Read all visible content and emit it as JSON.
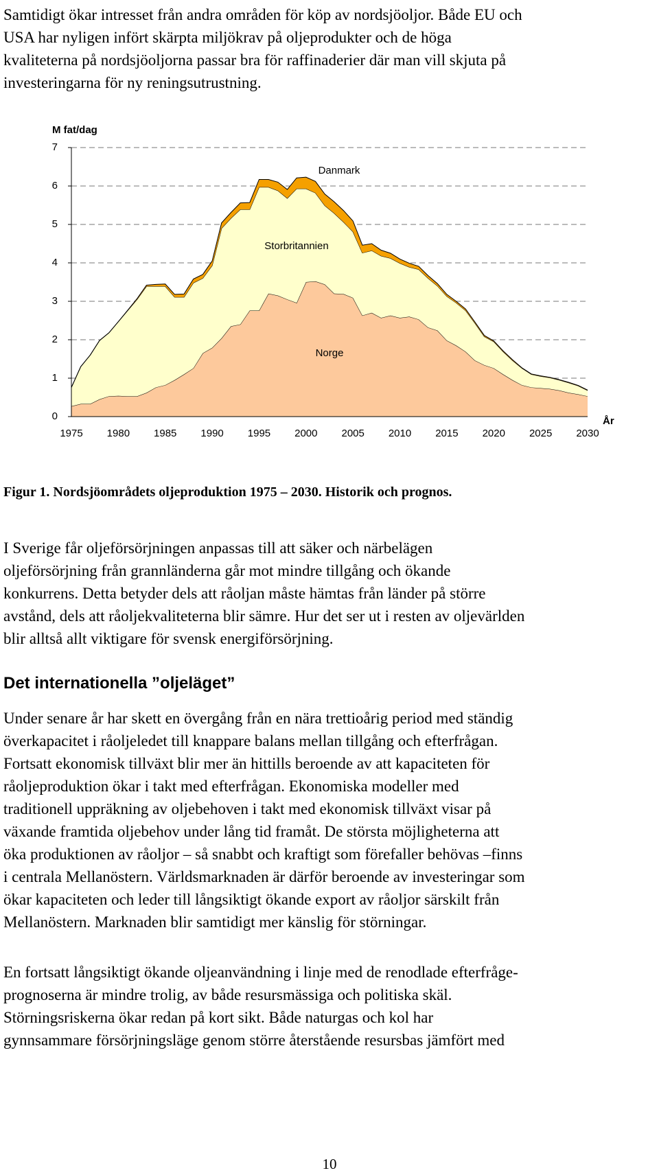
{
  "paragraphs": [
    {
      "lines": [
        "Samtidigt ökar intresset från andra områden för köp av nordsjöoljor. Både EU och",
        "USA har nyligen infört skärpta miljökrav på oljeprodukter och de höga",
        "kvaliteterna på nordsjöoljorna passar bra för raffinaderier där man vill skjuta på",
        "investeringarna för ny reningsutrustning."
      ]
    },
    {
      "lines": [
        "I Sverige får oljeförsörjningen anpassas till att säker och närbelägen",
        "oljeförsörjning från grannländerna går mot mindre tillgång och ökande",
        "konkurrens. Detta betyder dels att råoljan måste hämtas från länder på större",
        "avstånd, dels att råoljekvaliteterna blir sämre. Hur det ser ut i resten av oljevärlden",
        "blir alltså allt viktigare för svensk energiförsörjning."
      ]
    },
    {
      "lines": [
        "Under senare år har skett en övergång från en nära trettioårig period med ständig",
        "överkapacitet i råoljeledet till knappare balans mellan tillgång och efterfrågan.",
        "Fortsatt ekonomisk tillväxt blir mer än hittills beroende av att kapaciteten för",
        "råoljeproduktion ökar i takt med efterfrågan. Ekonomiska modeller med",
        "traditionell uppräkning av oljebehoven i takt med ekonomisk tillväxt visar på",
        "växande framtida oljebehov under lång tid framåt. De största möjligheterna att",
        "öka produktionen av råoljor – så snabbt och kraftigt som förefaller behövas –finns",
        "i centrala Mellanöstern. Världsmarknaden är därför beroende av investeringar som",
        "ökar kapaciteten och leder till långsiktigt ökande export av råoljor särskilt från",
        "Mellanöstern. Marknaden blir samtidigt mer känslig för störningar."
      ]
    },
    {
      "lines": [
        "En fortsatt långsiktigt ökande oljeanvändning i linje med de renodlade efterfråge-",
        "prognoserna är mindre trolig, av både resursmässiga och politiska skäl.",
        "Störningsriskerna ökar redan på kort sikt. Både naturgas och kol har",
        "gynnsammare försörjningsläge genom större återstående resursbas jämfört med"
      ]
    }
  ],
  "figure_caption": "Figur 1. Nordsjöområdets oljeproduktion 1975 – 2030. Historik och prognos.",
  "heading": "Det internationella ”oljeläget”",
  "page_number": "10",
  "chart_data": {
    "type": "stacked_area",
    "y_label": "M fat/dag",
    "x_label": "År",
    "x": [
      1975,
      1976,
      1977,
      1978,
      1979,
      1980,
      1981,
      1982,
      1983,
      1984,
      1985,
      1986,
      1987,
      1988,
      1989,
      1990,
      1991,
      1992,
      1993,
      1994,
      1995,
      1996,
      1997,
      1998,
      1999,
      2000,
      2001,
      2002,
      2003,
      2004,
      2005,
      2006,
      2007,
      2008,
      2009,
      2010,
      2011,
      2012,
      2013,
      2014,
      2015,
      2016,
      2017,
      2018,
      2019,
      2020,
      2021,
      2022,
      2023,
      2024,
      2025,
      2026,
      2027,
      2028,
      2029,
      2030
    ],
    "series": [
      {
        "name": "Norge",
        "color": "#fdc99c",
        "values": [
          0.27,
          0.33,
          0.33,
          0.45,
          0.53,
          0.54,
          0.53,
          0.53,
          0.62,
          0.76,
          0.82,
          0.95,
          1.1,
          1.26,
          1.65,
          1.79,
          2.04,
          2.35,
          2.4,
          2.76,
          2.76,
          3.2,
          3.15,
          3.05,
          2.96,
          3.5,
          3.52,
          3.44,
          3.2,
          3.19,
          3.09,
          2.63,
          2.7,
          2.57,
          2.63,
          2.57,
          2.6,
          2.53,
          2.32,
          2.24,
          1.98,
          1.85,
          1.69,
          1.46,
          1.34,
          1.26,
          1.1,
          0.95,
          0.82,
          0.76,
          0.74,
          0.72,
          0.68,
          0.62,
          0.58,
          0.53
        ]
      },
      {
        "name": "Storbritannien",
        "color": "#ffffcc",
        "values": [
          0.49,
          0.97,
          1.27,
          1.53,
          1.65,
          1.93,
          2.23,
          2.52,
          2.77,
          2.63,
          2.57,
          2.16,
          2.01,
          2.22,
          1.95,
          2.14,
          2.86,
          2.81,
          2.99,
          2.63,
          3.21,
          2.77,
          2.73,
          2.63,
          2.97,
          2.43,
          2.3,
          2.05,
          2.09,
          1.87,
          1.72,
          1.63,
          1.62,
          1.61,
          1.49,
          1.42,
          1.29,
          1.3,
          1.28,
          1.16,
          1.15,
          1.11,
          1.07,
          0.97,
          0.74,
          0.69,
          0.59,
          0.51,
          0.44,
          0.34,
          0.31,
          0.29,
          0.27,
          0.26,
          0.22,
          0.15
        ]
      },
      {
        "name": "Danmark",
        "color": "#f5a000",
        "values": [
          0,
          0,
          0,
          0,
          0,
          0,
          0.01,
          0.02,
          0.03,
          0.05,
          0.06,
          0.07,
          0.08,
          0.1,
          0.1,
          0.12,
          0.14,
          0.15,
          0.17,
          0.18,
          0.2,
          0.2,
          0.22,
          0.23,
          0.28,
          0.3,
          0.3,
          0.3,
          0.3,
          0.3,
          0.28,
          0.2,
          0.18,
          0.15,
          0.13,
          0.11,
          0.1,
          0.08,
          0.07,
          0.06,
          0.05,
          0.04,
          0.04,
          0.03,
          0.03,
          0.02,
          0.02,
          0.02,
          0.01,
          0.01,
          0.01,
          0.01,
          0.01,
          0.01,
          0.01,
          0.01
        ]
      }
    ],
    "xlim": [
      1975,
      2030
    ],
    "xticks": [
      1975,
      1980,
      1985,
      1990,
      1995,
      2000,
      2005,
      2010,
      2015,
      2020,
      2025,
      2030
    ],
    "ylim": [
      0,
      7
    ],
    "yticks": [
      0,
      1,
      2,
      3,
      4,
      5,
      6,
      7
    ],
    "grid": true
  }
}
